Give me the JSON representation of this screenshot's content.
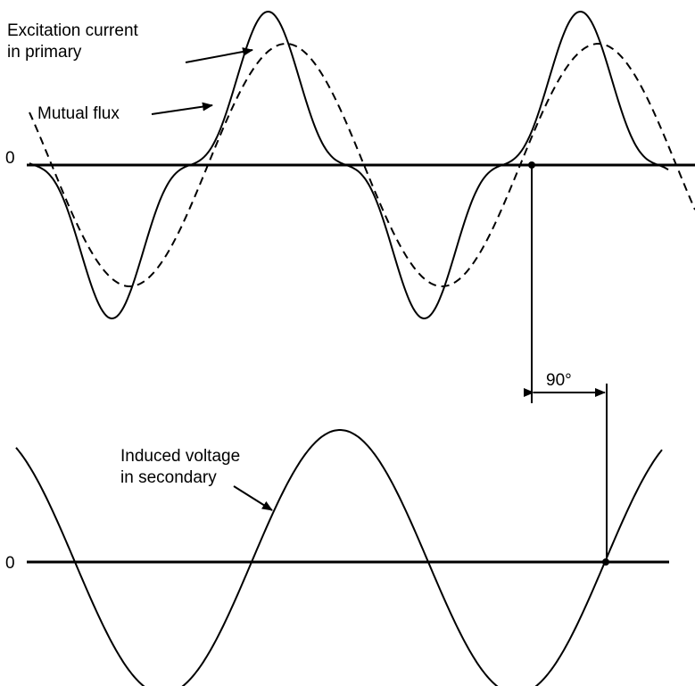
{
  "labels": {
    "excitation_line1": "Excitation current",
    "excitation_line2": "in primary",
    "mutual_flux": "Mutual flux",
    "zero_top": "0",
    "phase": "90°",
    "induced_line1": "Induced voltage",
    "induced_line2": "in secondary",
    "zero_bottom": "0"
  }
}
